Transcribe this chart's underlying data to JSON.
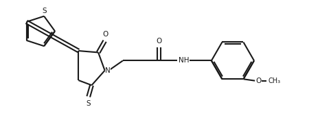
{
  "background_color": "#ffffff",
  "line_color": "#1a1a1a",
  "lw": 1.5,
  "figsize": [
    4.82,
    1.72
  ],
  "dpi": 100,
  "xlim": [
    0,
    100
  ],
  "ylim": [
    0,
    36
  ]
}
